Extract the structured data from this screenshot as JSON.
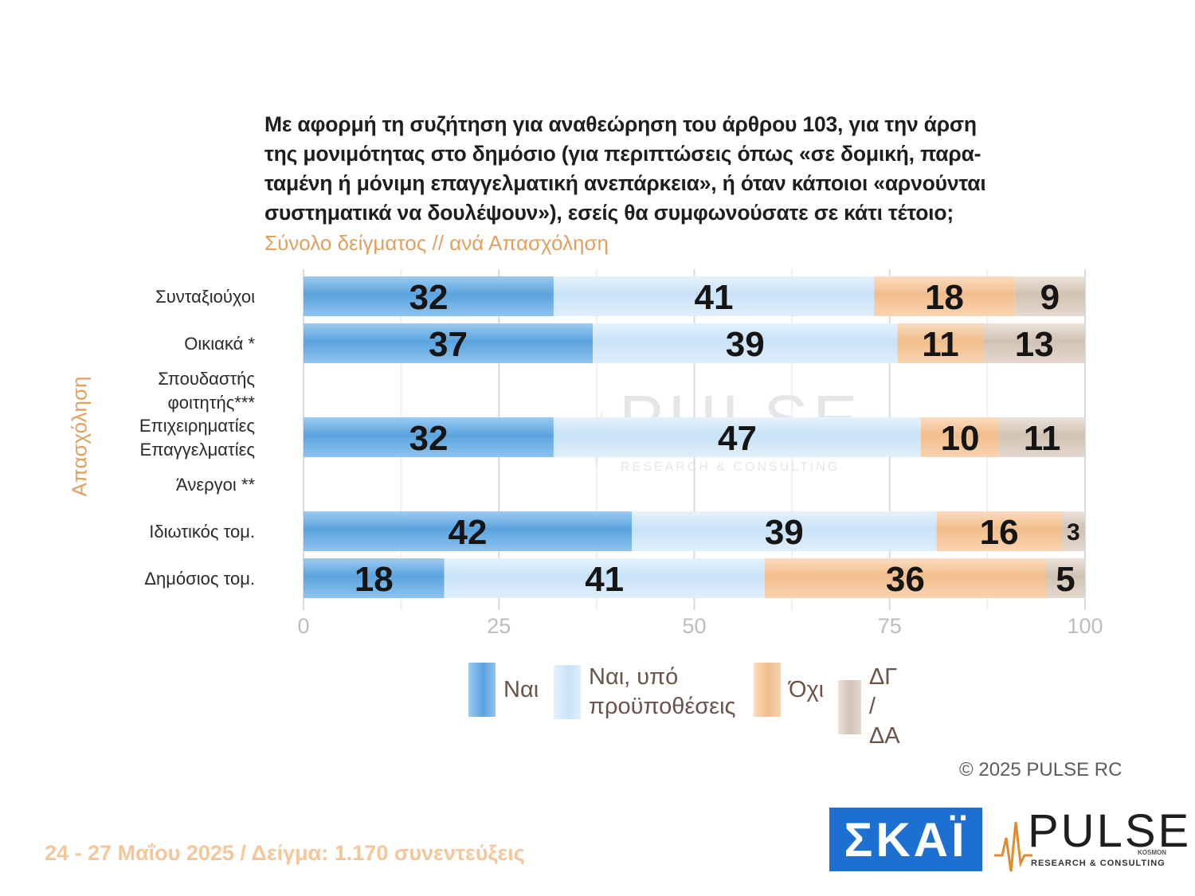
{
  "title_lines": [
    "Με αφορμή τη συζήτηση για αναθεώρηση του άρθρου 103, για την άρση",
    "της μονιμότητας στο δημόσιο (για περιπτώσεις όπως «σε δομική, παρα-",
    "ταμένη ή μόνιμη επαγγελματική ανεπάρκεια», ή όταν κάποιοι «αρνούνται",
    "συστηματικά να δουλέψουν»), εσείς θα συμφωνούσατε σε κάτι τέτοιο;"
  ],
  "subtitle": "Σύνολο δείγματος // ανά Απασχόληση",
  "axis_group_title": "Απασχόληση",
  "chart_data": {
    "type": "bar",
    "orientation": "horizontal",
    "stacked": true,
    "categories": [
      [
        "Συνταξιούχοι"
      ],
      [
        "Οικιακά *"
      ],
      [
        "Σπουδαστής",
        "φοιτητής***"
      ],
      [
        "Επιχειρηματίες",
        "Επαγγελματίες"
      ],
      [
        "Άνεργοι **"
      ],
      [
        "Ιδιωτικός τομ."
      ],
      [
        "Δημόσιος τομ."
      ]
    ],
    "series": [
      {
        "name": "Ναι",
        "values": [
          32,
          37,
          null,
          32,
          null,
          42,
          18
        ]
      },
      {
        "name": "Ναι, υπό προϋποθέσεις",
        "values": [
          41,
          39,
          null,
          47,
          null,
          39,
          41
        ]
      },
      {
        "name": "Όχι",
        "values": [
          18,
          11,
          null,
          10,
          null,
          16,
          36
        ]
      },
      {
        "name": "ΔΓ / ΔΑ",
        "values": [
          9,
          13,
          null,
          11,
          null,
          3,
          5
        ]
      }
    ],
    "x_ticks": [
      0,
      25,
      50,
      75,
      100
    ],
    "xlim": [
      0,
      100
    ],
    "grid": true,
    "legend_position": "bottom",
    "colors": [
      "#68aee5",
      "#cfe6f9",
      "#f4c597",
      "#d9ccbf"
    ]
  },
  "legend": [
    {
      "lines": [
        "Ναι"
      ],
      "color": "#68aee5"
    },
    {
      "lines": [
        "Ναι, υπό",
        "προϋποθέσεις"
      ],
      "color": "#cfe6f9"
    },
    {
      "lines": [
        "Όχι"
      ],
      "color": "#f4c597"
    },
    {
      "lines": [
        "ΔΓ /",
        "ΔΑ"
      ],
      "color": "#d9ccbf"
    }
  ],
  "watermark": {
    "name": "PULSE",
    "sub": "RESEARCH & CONSULTING"
  },
  "copyright": "©  2025  PULSE RC",
  "footer": "24 - 27 Μαΐου 2025  /  Δείγμα:  1.170 συνεντεύξεις",
  "logos": {
    "skai": "ΣΚΑΪ",
    "pulse": "PULSE",
    "pulse_kosmon": "KOSMON",
    "pulse_sub": "RESEARCH & CONSULTING"
  }
}
